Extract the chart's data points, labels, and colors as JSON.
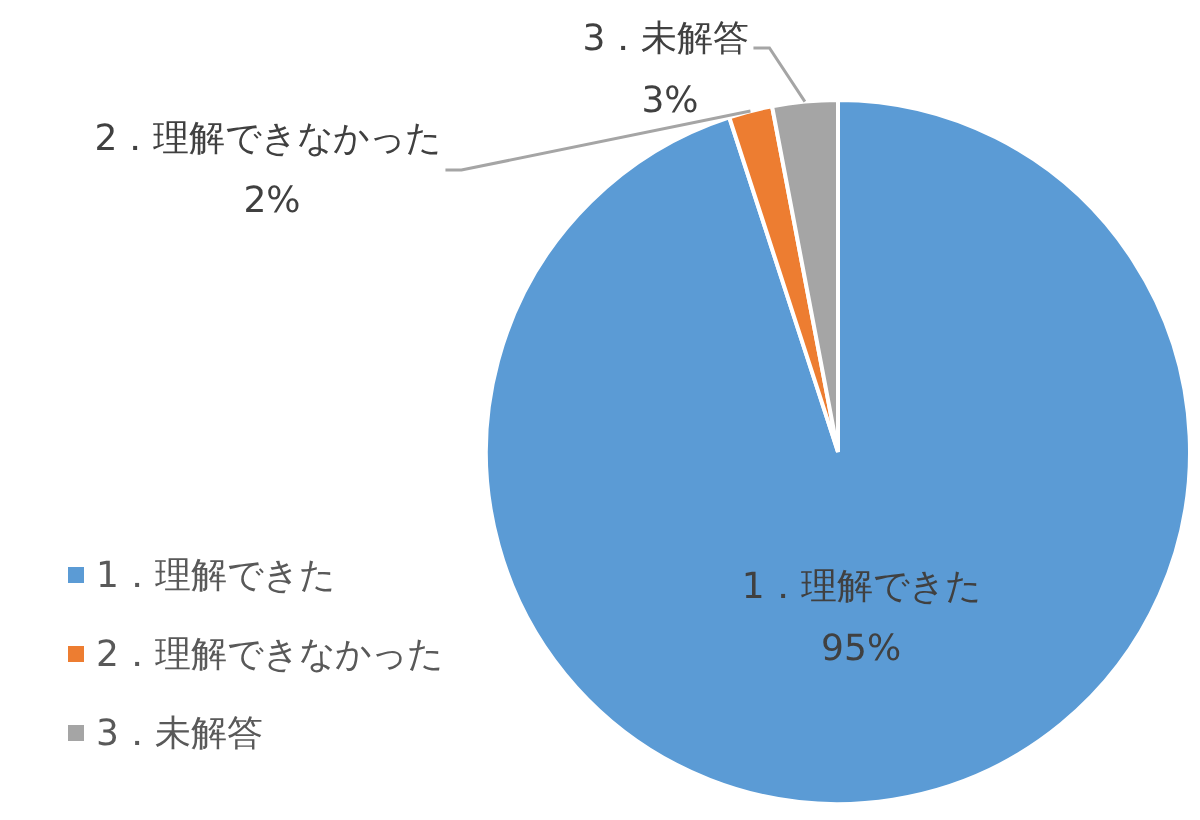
{
  "chart_data": {
    "type": "pie",
    "categories": [
      "1．理解できた",
      "2．理解できなかった",
      "3．未解答"
    ],
    "values": [
      95,
      2,
      3
    ],
    "colors": [
      "#5b9bd5",
      "#ed7d31",
      "#a5a5a5"
    ],
    "value_labels": [
      "95%",
      "2%",
      "3%"
    ],
    "legend": "bottom left"
  }
}
